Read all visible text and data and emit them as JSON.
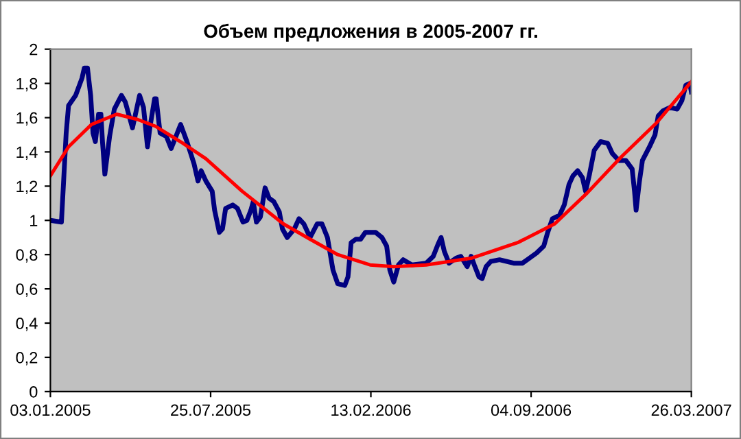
{
  "chart_data": {
    "type": "line",
    "title": "Объем предложения в 2005-2007 гг.",
    "xlim": [
      "2005-01-03",
      "2007-03-26"
    ],
    "ylim": [
      0,
      2
    ],
    "xticks": [
      {
        "value": "2005-01-03",
        "label": "03.01.2005"
      },
      {
        "value": "2005-07-25",
        "label": "25.07.2005"
      },
      {
        "value": "2006-02-13",
        "label": "13.02.2006"
      },
      {
        "value": "2006-09-04",
        "label": "04.09.2006"
      },
      {
        "value": "2007-03-26",
        "label": "26.03.2007"
      }
    ],
    "yticks": [
      0,
      {
        "value": 0.2,
        "label": "0,2"
      },
      {
        "value": 0.4,
        "label": "0,4"
      },
      {
        "value": 0.6,
        "label": "0,6"
      },
      {
        "value": 0.8,
        "label": "0,8"
      },
      1,
      {
        "value": 1.2,
        "label": "1,2"
      },
      {
        "value": 1.4,
        "label": "1,4"
      },
      {
        "value": 1.6,
        "label": "1,6"
      },
      {
        "value": 1.8,
        "label": "1,8"
      },
      2
    ],
    "grid": false,
    "legend": false,
    "marker": "none",
    "line_style": "solid",
    "series": [
      {
        "color": "#000080",
        "x": [
          "2005-01-03",
          "2005-01-17",
          "2005-01-23",
          "2005-01-26",
          "2005-02-04",
          "2005-02-12",
          "2005-02-15",
          "2005-02-19",
          "2005-02-23",
          "2005-02-26",
          "2005-03-01",
          "2005-03-05",
          "2005-03-08",
          "2005-03-10",
          "2005-03-13",
          "2005-03-19",
          "2005-03-25",
          "2005-04-03",
          "2005-04-08",
          "2005-04-17",
          "2005-04-26",
          "2005-05-01",
          "2005-05-06",
          "2005-05-09",
          "2005-05-15",
          "2005-05-17",
          "2005-05-22",
          "2005-05-30",
          "2005-06-05",
          "2005-06-11",
          "2005-06-17",
          "2005-06-25",
          "2005-07-04",
          "2005-07-09",
          "2005-07-13",
          "2005-07-19",
          "2005-07-27",
          "2005-07-30",
          "2005-08-05",
          "2005-08-09",
          "2005-08-13",
          "2005-08-22",
          "2005-08-28",
          "2005-09-04",
          "2005-09-09",
          "2005-09-14",
          "2005-09-17",
          "2005-09-21",
          "2005-09-26",
          "2005-10-02",
          "2005-10-07",
          "2005-10-13",
          "2005-10-20",
          "2005-10-24",
          "2005-10-30",
          "2005-11-08",
          "2005-11-14",
          "2005-11-20",
          "2005-11-28",
          "2005-12-07",
          "2005-12-13",
          "2005-12-20",
          "2005-12-27",
          "2006-01-02",
          "2006-01-11",
          "2006-01-15",
          "2006-01-19",
          "2006-01-25",
          "2006-01-31",
          "2006-02-06",
          "2006-02-19",
          "2006-02-27",
          "2006-03-05",
          "2006-03-09",
          "2006-03-14",
          "2006-03-20",
          "2006-03-26",
          "2006-04-06",
          "2006-04-24",
          "2006-05-03",
          "2006-05-09",
          "2006-05-13",
          "2006-05-17",
          "2006-05-23",
          "2006-06-01",
          "2006-06-07",
          "2006-06-15",
          "2006-06-20",
          "2006-06-24",
          "2006-06-30",
          "2006-07-04",
          "2006-07-09",
          "2006-07-15",
          "2006-07-26",
          "2006-08-13",
          "2006-08-24",
          "2006-09-02",
          "2006-09-11",
          "2006-09-20",
          "2006-09-25",
          "2006-10-01",
          "2006-10-10",
          "2006-10-16",
          "2006-10-22",
          "2006-10-27",
          "2006-11-02",
          "2006-11-08",
          "2006-11-12",
          "2006-11-17",
          "2006-11-23",
          "2006-12-01",
          "2006-12-10",
          "2006-12-16",
          "2006-12-24",
          "2007-01-02",
          "2007-01-10",
          "2007-01-13",
          "2007-01-15",
          "2007-01-19",
          "2007-01-23",
          "2007-02-01",
          "2007-02-08",
          "2007-02-12",
          "2007-02-18",
          "2007-02-27",
          "2007-03-08",
          "2007-03-14",
          "2007-03-19",
          "2007-03-24",
          "2007-03-26"
        ],
        "values": [
          1.0,
          0.99,
          1.51,
          1.67,
          1.73,
          1.83,
          1.89,
          1.89,
          1.73,
          1.51,
          1.46,
          1.62,
          1.62,
          1.46,
          1.27,
          1.49,
          1.65,
          1.73,
          1.69,
          1.54,
          1.73,
          1.66,
          1.43,
          1.54,
          1.71,
          1.71,
          1.51,
          1.49,
          1.42,
          1.49,
          1.56,
          1.46,
          1.33,
          1.23,
          1.29,
          1.23,
          1.17,
          1.06,
          0.93,
          0.95,
          1.07,
          1.09,
          1.07,
          0.99,
          1.0,
          1.06,
          1.11,
          0.99,
          1.02,
          1.19,
          1.13,
          1.11,
          1.05,
          0.95,
          0.9,
          0.95,
          1.01,
          0.98,
          0.9,
          0.98,
          0.98,
          0.9,
          0.71,
          0.63,
          0.62,
          0.67,
          0.87,
          0.89,
          0.89,
          0.93,
          0.93,
          0.9,
          0.85,
          0.71,
          0.64,
          0.74,
          0.77,
          0.74,
          0.75,
          0.79,
          0.86,
          0.9,
          0.82,
          0.75,
          0.78,
          0.79,
          0.73,
          0.79,
          0.74,
          0.67,
          0.66,
          0.73,
          0.76,
          0.77,
          0.75,
          0.75,
          0.78,
          0.81,
          0.85,
          0.93,
          1.01,
          1.03,
          1.09,
          1.21,
          1.26,
          1.29,
          1.25,
          1.17,
          1.27,
          1.41,
          1.46,
          1.45,
          1.39,
          1.35,
          1.35,
          1.3,
          1.17,
          1.06,
          1.22,
          1.35,
          1.43,
          1.5,
          1.61,
          1.64,
          1.66,
          1.65,
          1.7,
          1.79,
          1.8,
          1.75
        ]
      },
      {
        "color": "#ff0000",
        "x": [
          "2005-01-03",
          "2005-01-26",
          "2005-02-24",
          "2005-03-28",
          "2005-04-23",
          "2005-05-16",
          "2005-06-20",
          "2005-07-19",
          "2005-09-03",
          "2005-10-25",
          "2005-11-28",
          "2006-01-02",
          "2006-02-12",
          "2006-03-14",
          "2006-04-24",
          "2006-06-21",
          "2006-08-18",
          "2006-10-04",
          "2006-11-14",
          "2006-12-27",
          "2007-02-10",
          "2007-03-26"
        ],
        "values": [
          1.26,
          1.43,
          1.56,
          1.62,
          1.59,
          1.55,
          1.45,
          1.36,
          1.17,
          0.98,
          0.89,
          0.8,
          0.74,
          0.73,
          0.74,
          0.78,
          0.87,
          0.98,
          1.16,
          1.37,
          1.57,
          1.81
        ]
      }
    ]
  }
}
